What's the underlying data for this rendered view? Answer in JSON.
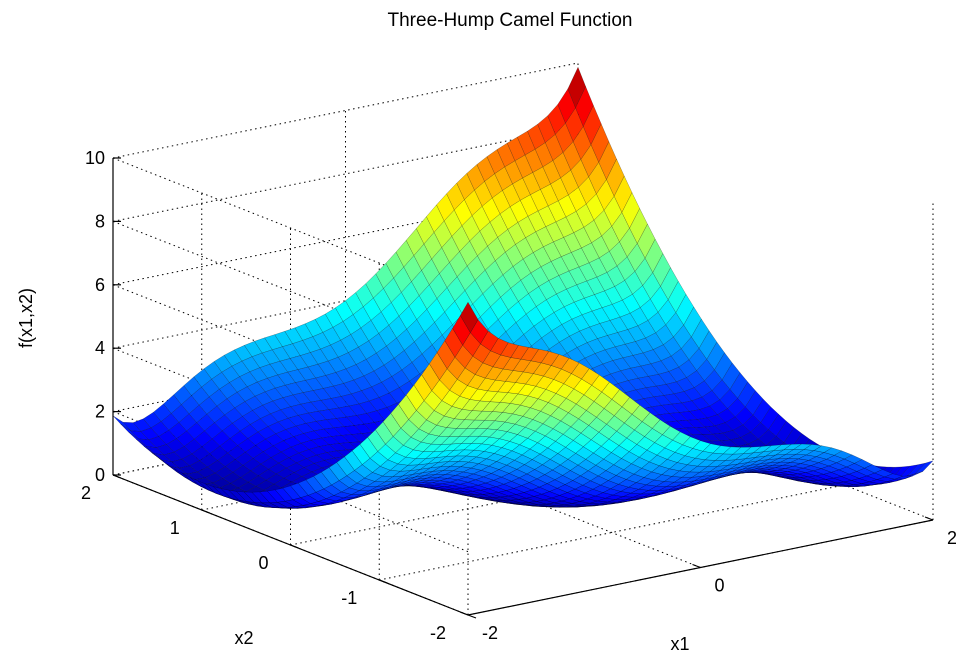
{
  "chart_data": {
    "type": "surface",
    "title": "Three-Hump Camel Function",
    "xlabel": "x1",
    "ylabel": "x2",
    "zlabel": "f(x1,x2)",
    "function": "2*x1^2 - 1.05*x1^4 + x1^6/6 + x1*x2 + x2^2",
    "x_range": [
      -2,
      2
    ],
    "y_range": [
      -2,
      2
    ],
    "zlim": [
      0,
      10
    ],
    "x_ticks": [
      "-2",
      "0",
      "2"
    ],
    "y_ticks": [
      "-2",
      "-1",
      "0",
      "1",
      "2"
    ],
    "z_ticks": [
      "0",
      "2",
      "4",
      "6",
      "8",
      "10"
    ],
    "colormap": "jet",
    "grid": true,
    "z_samples": [
      {
        "x1": -2,
        "x2": 2,
        "f": 1.87
      },
      {
        "x1": -2,
        "x2": -2,
        "f": 9.87
      },
      {
        "x1": 2,
        "x2": 2,
        "f": 9.87
      },
      {
        "x1": 2,
        "x2": -2,
        "f": 1.87
      },
      {
        "x1": 0,
        "x2": 0,
        "f": 0
      }
    ]
  }
}
